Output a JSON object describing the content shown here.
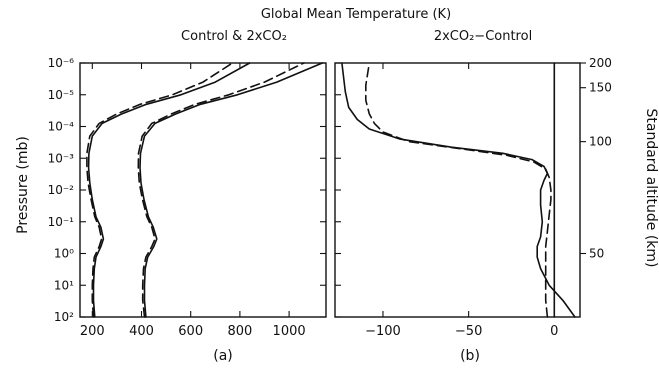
{
  "figure": {
    "title": "Global Mean Temperature (K)",
    "ylabel": "Pressure (mb)",
    "y2label": "Standard altitude (km)"
  },
  "chart_data": [
    {
      "type": "line",
      "panel_title": "Control & 2xCO₂",
      "panel_label": "(a)",
      "xlim": [
        150,
        1150
      ],
      "xticks": [
        "200",
        "400",
        "600",
        "800",
        "1000"
      ],
      "xtick_values": [
        200,
        400,
        600,
        800,
        1000
      ],
      "yscale": "log",
      "ylim_pressure_mb": [
        100,
        1e-06
      ],
      "yticks": [
        "10⁻⁶",
        "10⁻⁵",
        "10⁻⁴",
        "10⁻³",
        "10⁻²",
        "10⁻¹",
        "10⁰",
        "10¹",
        "10²"
      ],
      "series": [
        {
          "style": "solid",
          "points": [
            [
              210,
              100
            ],
            [
              205,
              30
            ],
            [
              205,
              10
            ],
            [
              208,
              3
            ],
            [
              215,
              1.3
            ],
            [
              235,
              0.6
            ],
            [
              245,
              0.35
            ],
            [
              235,
              0.15
            ],
            [
              215,
              0.07
            ],
            [
              200,
              0.02
            ],
            [
              190,
              0.006
            ],
            [
              185,
              0.002
            ],
            [
              186,
              0.0007
            ],
            [
              200,
              0.0002
            ],
            [
              240,
              8e-05
            ],
            [
              320,
              4e-05
            ],
            [
              420,
              2e-05
            ],
            [
              560,
              1e-05
            ],
            [
              700,
              4e-06
            ],
            [
              840,
              1e-06
            ]
          ]
        },
        {
          "style": "dashed",
          "points": [
            [
              205,
              100
            ],
            [
              200,
              30
            ],
            [
              200,
              10
            ],
            [
              203,
              3
            ],
            [
              208,
              1.3
            ],
            [
              228,
              0.6
            ],
            [
              238,
              0.35
            ],
            [
              228,
              0.15
            ],
            [
              210,
              0.07
            ],
            [
              195,
              0.02
            ],
            [
              183,
              0.006
            ],
            [
              178,
              0.002
            ],
            [
              178,
              0.0007
            ],
            [
              190,
              0.0002
            ],
            [
              228,
              8e-05
            ],
            [
              300,
              4e-05
            ],
            [
              395,
              2e-05
            ],
            [
              525,
              1e-05
            ],
            [
              650,
              4e-06
            ],
            [
              770,
              1e-06
            ]
          ]
        },
        {
          "style": "solid",
          "points": [
            [
              418,
              100
            ],
            [
              412,
              30
            ],
            [
              412,
              10
            ],
            [
              415,
              3
            ],
            [
              425,
              1.3
            ],
            [
              450,
              0.6
            ],
            [
              462,
              0.35
            ],
            [
              448,
              0.15
            ],
            [
              428,
              0.07
            ],
            [
              410,
              0.02
            ],
            [
              398,
              0.006
            ],
            [
              394,
              0.002
            ],
            [
              396,
              0.0007
            ],
            [
              412,
              0.0002
            ],
            [
              455,
              8e-05
            ],
            [
              540,
              4e-05
            ],
            [
              640,
              2e-05
            ],
            [
              790,
              1e-05
            ],
            [
              950,
              4e-06
            ],
            [
              1135,
              1e-06
            ]
          ]
        },
        {
          "style": "dashed",
          "points": [
            [
              412,
              100
            ],
            [
              405,
              30
            ],
            [
              405,
              10
            ],
            [
              408,
              3
            ],
            [
              418,
              1.3
            ],
            [
              442,
              0.6
            ],
            [
              455,
              0.35
            ],
            [
              442,
              0.15
            ],
            [
              422,
              0.07
            ],
            [
              404,
              0.02
            ],
            [
              391,
              0.006
            ],
            [
              387,
              0.002
            ],
            [
              388,
              0.0007
            ],
            [
              403,
              0.0002
            ],
            [
              442,
              8e-05
            ],
            [
              522,
              4e-05
            ],
            [
              618,
              2e-05
            ],
            [
              755,
              1e-05
            ],
            [
              900,
              4e-06
            ],
            [
              1060,
              1e-06
            ]
          ]
        }
      ]
    },
    {
      "type": "line",
      "panel_title": "2xCO₂−Control",
      "panel_label": "(b)",
      "xlim": [
        -128,
        15
      ],
      "xticks": [
        "−100",
        "−50",
        "0"
      ],
      "xtick_values": [
        -100,
        -50,
        0
      ],
      "yscale": "log",
      "ylim_pressure_mb": [
        100,
        1e-06
      ],
      "y2ticks": [
        "200",
        "150",
        "100",
        "50"
      ],
      "y2tick_positions_pressure_mb": [
        1e-06,
        6e-06,
        0.0003,
        1.0
      ],
      "series": [
        {
          "style": "solid",
          "points": [
            [
              12,
              100
            ],
            [
              5,
              30
            ],
            [
              -3,
              10
            ],
            [
              -8,
              3
            ],
            [
              -10,
              1.3
            ],
            [
              -10,
              0.6
            ],
            [
              -8,
              0.3
            ],
            [
              -7,
              0.1
            ],
            [
              -8,
              0.03
            ],
            [
              -8,
              0.01
            ],
            [
              -6,
              0.005
            ],
            [
              -4,
              0.003
            ],
            [
              -6,
              0.0018
            ],
            [
              -13,
              0.0011
            ],
            [
              -30,
              0.0007
            ],
            [
              -60,
              0.00045
            ],
            [
              -90,
              0.00025
            ],
            [
              -108,
              0.00012
            ],
            [
              -115,
              6e-05
            ],
            [
              -120,
              2.5e-05
            ],
            [
              -122,
              8e-06
            ],
            [
              -124,
              1e-06
            ]
          ]
        },
        {
          "style": "dashed",
          "points": [
            [
              -4,
              100
            ],
            [
              -5,
              30
            ],
            [
              -5,
              10
            ],
            [
              -5,
              3
            ],
            [
              -5,
              1.3
            ],
            [
              -5,
              0.6
            ],
            [
              -4,
              0.2
            ],
            [
              -3,
              0.06
            ],
            [
              -2,
              0.02
            ],
            [
              -2,
              0.01
            ],
            [
              -3,
              0.004
            ],
            [
              -5,
              0.0022
            ],
            [
              -12,
              0.0013
            ],
            [
              -28,
              0.0008
            ],
            [
              -55,
              0.0005
            ],
            [
              -85,
              0.0003
            ],
            [
              -100,
              0.00015
            ],
            [
              -105,
              8e-05
            ],
            [
              -108,
              4e-05
            ],
            [
              -110,
              1.5e-05
            ],
            [
              -110,
              5e-06
            ],
            [
              -108,
              1e-06
            ]
          ]
        },
        {
          "style": "solid",
          "points": [
            [
              0,
              100
            ],
            [
              0,
              1e-06
            ]
          ]
        }
      ]
    }
  ]
}
